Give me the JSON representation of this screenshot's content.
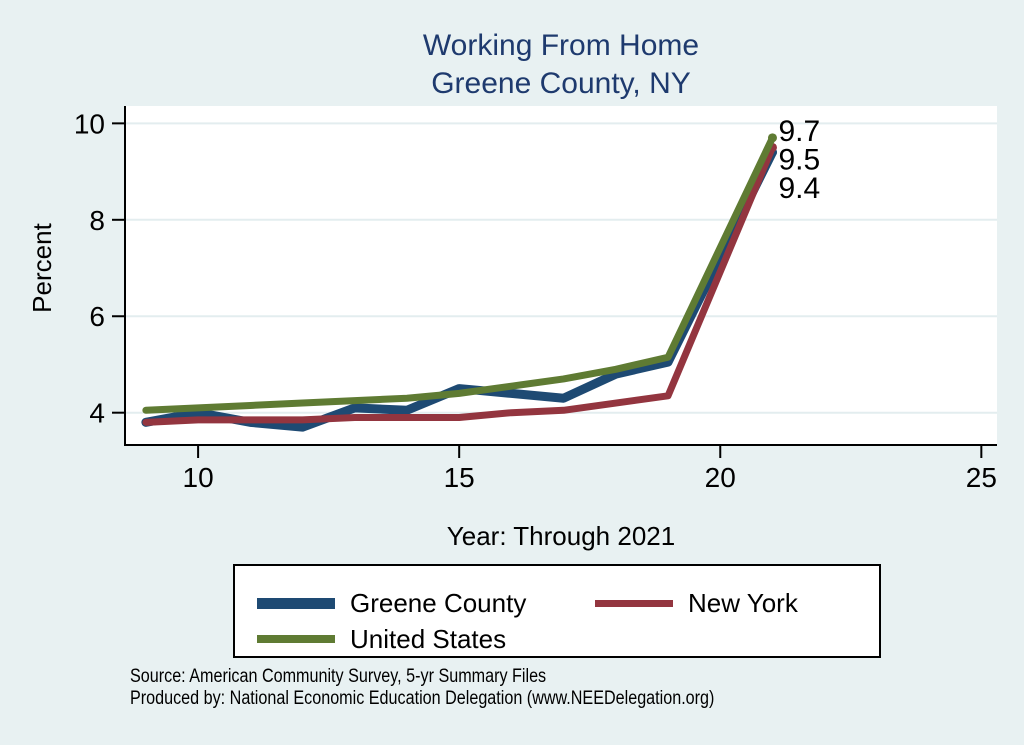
{
  "window": {
    "background": "#e8f1f2",
    "plot_background": "#ffffff",
    "grid_color": "#e3edef",
    "axis_color": "#000000"
  },
  "title": {
    "line1": "Working From Home",
    "line2": "Greene County, NY",
    "color": "#1e3a6e"
  },
  "axes": {
    "y_title": "Percent",
    "x_title": "Year: Through 2021"
  },
  "legend": {
    "items": [
      {
        "label": "Greene County",
        "color": "#1e4a73",
        "thickness": 11
      },
      {
        "label": "New York",
        "color": "#93353f",
        "thickness": 7
      },
      {
        "label": "United States",
        "color": "#5f7b33",
        "thickness": 8
      }
    ]
  },
  "source": {
    "line1": "Source: American Community Survey, 5-yr Summary Files",
    "line2": "Produced by: National Economic Education Delegation (www.NEEDelegation.org)"
  },
  "chart_data": {
    "type": "line",
    "title": "Working From Home — Greene County, NY",
    "xlabel": "Year: Through 2021",
    "ylabel": "Percent",
    "x": [
      9,
      10,
      11,
      12,
      13,
      14,
      15,
      16,
      17,
      18,
      19,
      21
    ],
    "series": [
      {
        "name": "Greene County",
        "color": "#1e4a73",
        "line_width": 9,
        "values": [
          3.8,
          4.0,
          3.8,
          3.7,
          4.1,
          4.05,
          4.5,
          4.4,
          4.3,
          4.8,
          5.05,
          9.4
        ]
      },
      {
        "name": "New York",
        "color": "#93353f",
        "line_width": 7,
        "values": [
          3.8,
          3.85,
          3.85,
          3.85,
          3.9,
          3.9,
          3.9,
          4.0,
          4.05,
          4.2,
          4.35,
          9.5
        ]
      },
      {
        "name": "United States",
        "color": "#5f7b33",
        "line_width": 7,
        "values": [
          4.05,
          4.1,
          4.15,
          4.2,
          4.25,
          4.3,
          4.4,
          4.55,
          4.7,
          4.9,
          5.15,
          9.7
        ]
      }
    ],
    "end_labels": [
      "9.7",
      "9.5",
      "9.4"
    ],
    "x_ticks": [
      10,
      15,
      20,
      25
    ],
    "y_ticks": [
      4,
      6,
      8,
      10
    ],
    "xlim": [
      8.6,
      25.3
    ],
    "ylim": [
      3.33,
      10.36
    ],
    "grid": true,
    "legend_position": "bottom"
  }
}
